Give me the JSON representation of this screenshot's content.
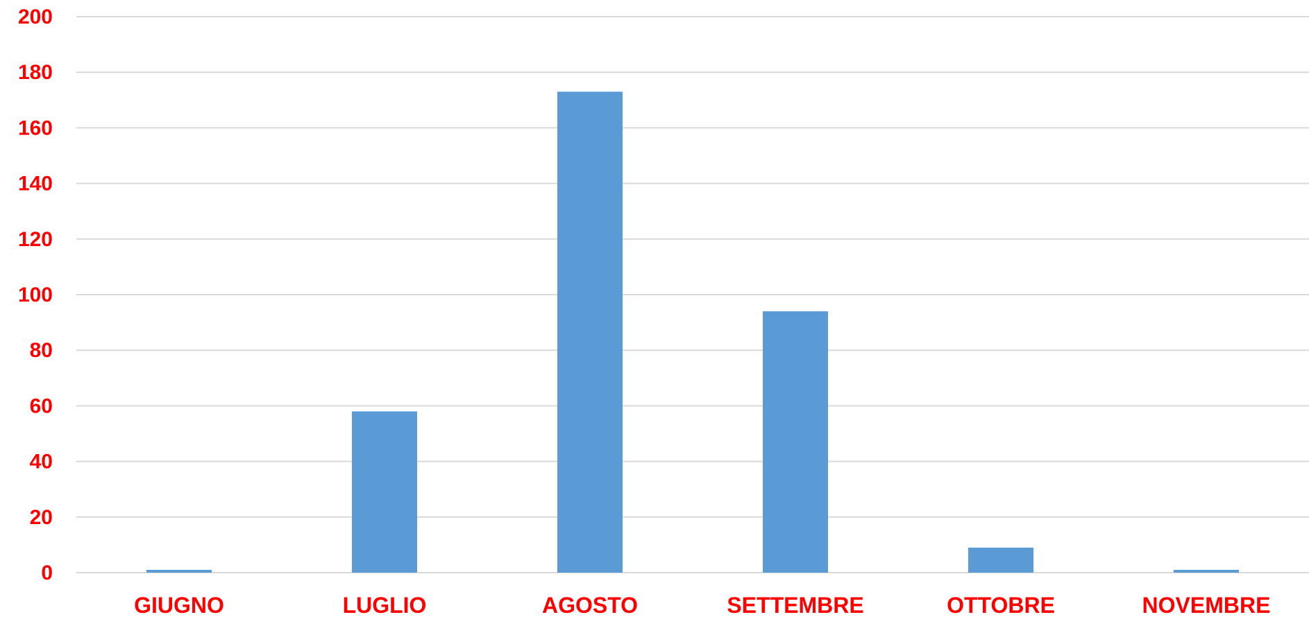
{
  "colors": {
    "bar": "#5b9bd5",
    "label": "#ff0000",
    "grid": "#d9d9d9"
  },
  "chart_data": {
    "type": "bar",
    "categories": [
      "GIUGNO",
      "LUGLIO",
      "AGOSTO",
      "SETTEMBRE",
      "OTTOBRE",
      "NOVEMBRE"
    ],
    "values": [
      1,
      58,
      173,
      94,
      9,
      1
    ],
    "title": "",
    "xlabel": "",
    "ylabel": "",
    "ylim": [
      0,
      200
    ],
    "yticks": [
      0,
      20,
      40,
      60,
      80,
      100,
      120,
      140,
      160,
      180,
      200
    ],
    "grid": true,
    "legend": "none"
  }
}
